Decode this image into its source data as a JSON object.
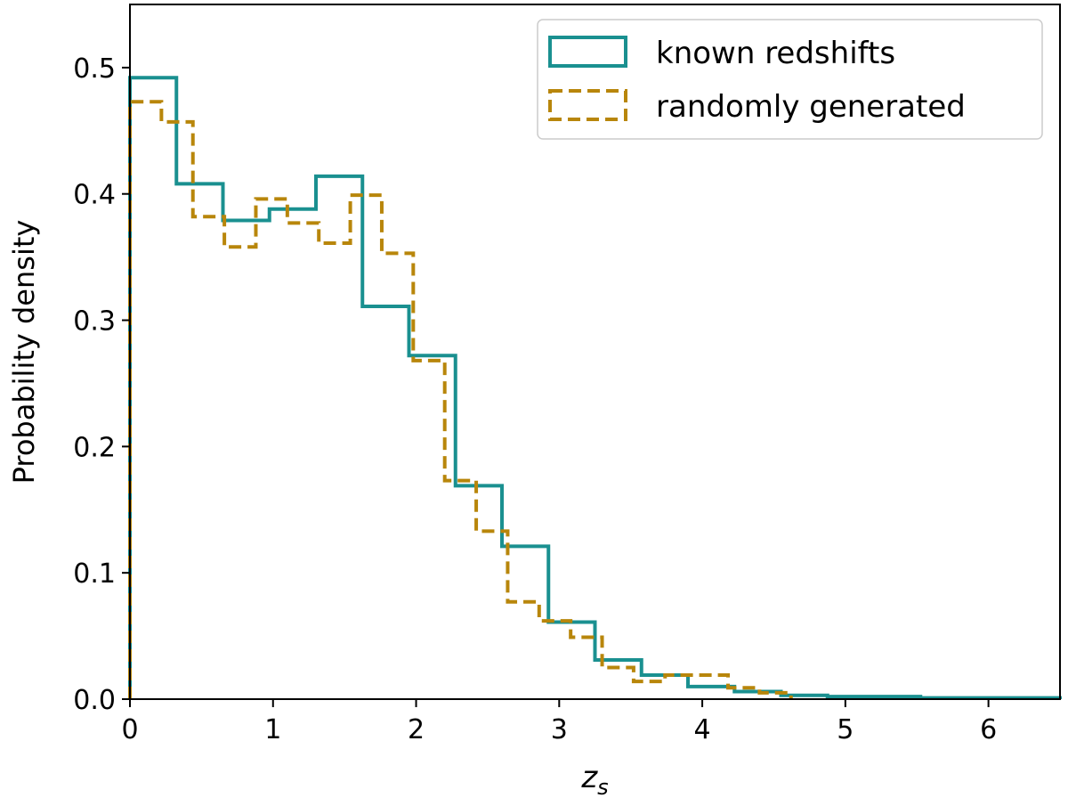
{
  "chart_data": {
    "type": "histogram",
    "xlabel": "z",
    "xlabel_subscript": "s",
    "ylabel": "Probability density",
    "xlim": [
      0,
      6.5
    ],
    "ylim": [
      0,
      0.55
    ],
    "xticks": [
      0,
      1,
      2,
      3,
      4,
      5,
      6
    ],
    "yticks": [
      0.0,
      0.1,
      0.2,
      0.3,
      0.4,
      0.5
    ],
    "ytick_labels": [
      "0.0",
      "0.1",
      "0.2",
      "0.3",
      "0.4",
      "0.5"
    ],
    "grid": false,
    "legend_position": "top-right",
    "series": [
      {
        "name": "known redshifts",
        "color": "#1a9090",
        "style": "solid",
        "edges": [
          0.0,
          0.325,
          0.65,
          0.975,
          1.3,
          1.625,
          1.95,
          2.275,
          2.6,
          2.925,
          3.25,
          3.575,
          3.9,
          4.225,
          4.55,
          4.875,
          5.2,
          5.525,
          5.85,
          6.175,
          6.5
        ],
        "values": [
          0.492,
          0.408,
          0.379,
          0.388,
          0.414,
          0.311,
          0.272,
          0.169,
          0.121,
          0.061,
          0.031,
          0.019,
          0.01,
          0.006,
          0.003,
          0.002,
          0.002,
          0.001,
          0.001,
          0.001
        ]
      },
      {
        "name": "randomly generated",
        "color": "#b8860b",
        "style": "dashed",
        "edges": [
          0.0,
          0.22,
          0.44,
          0.66,
          0.88,
          1.1,
          1.32,
          1.54,
          1.76,
          1.98,
          2.2,
          2.42,
          2.64,
          2.86,
          3.08,
          3.3,
          3.52,
          3.74,
          3.96,
          4.18,
          4.4,
          4.62
        ],
        "values": [
          0.473,
          0.457,
          0.382,
          0.358,
          0.396,
          0.377,
          0.361,
          0.399,
          0.353,
          0.268,
          0.173,
          0.133,
          0.077,
          0.062,
          0.049,
          0.025,
          0.014,
          0.019,
          0.019,
          0.009,
          0.005
        ]
      }
    ]
  }
}
